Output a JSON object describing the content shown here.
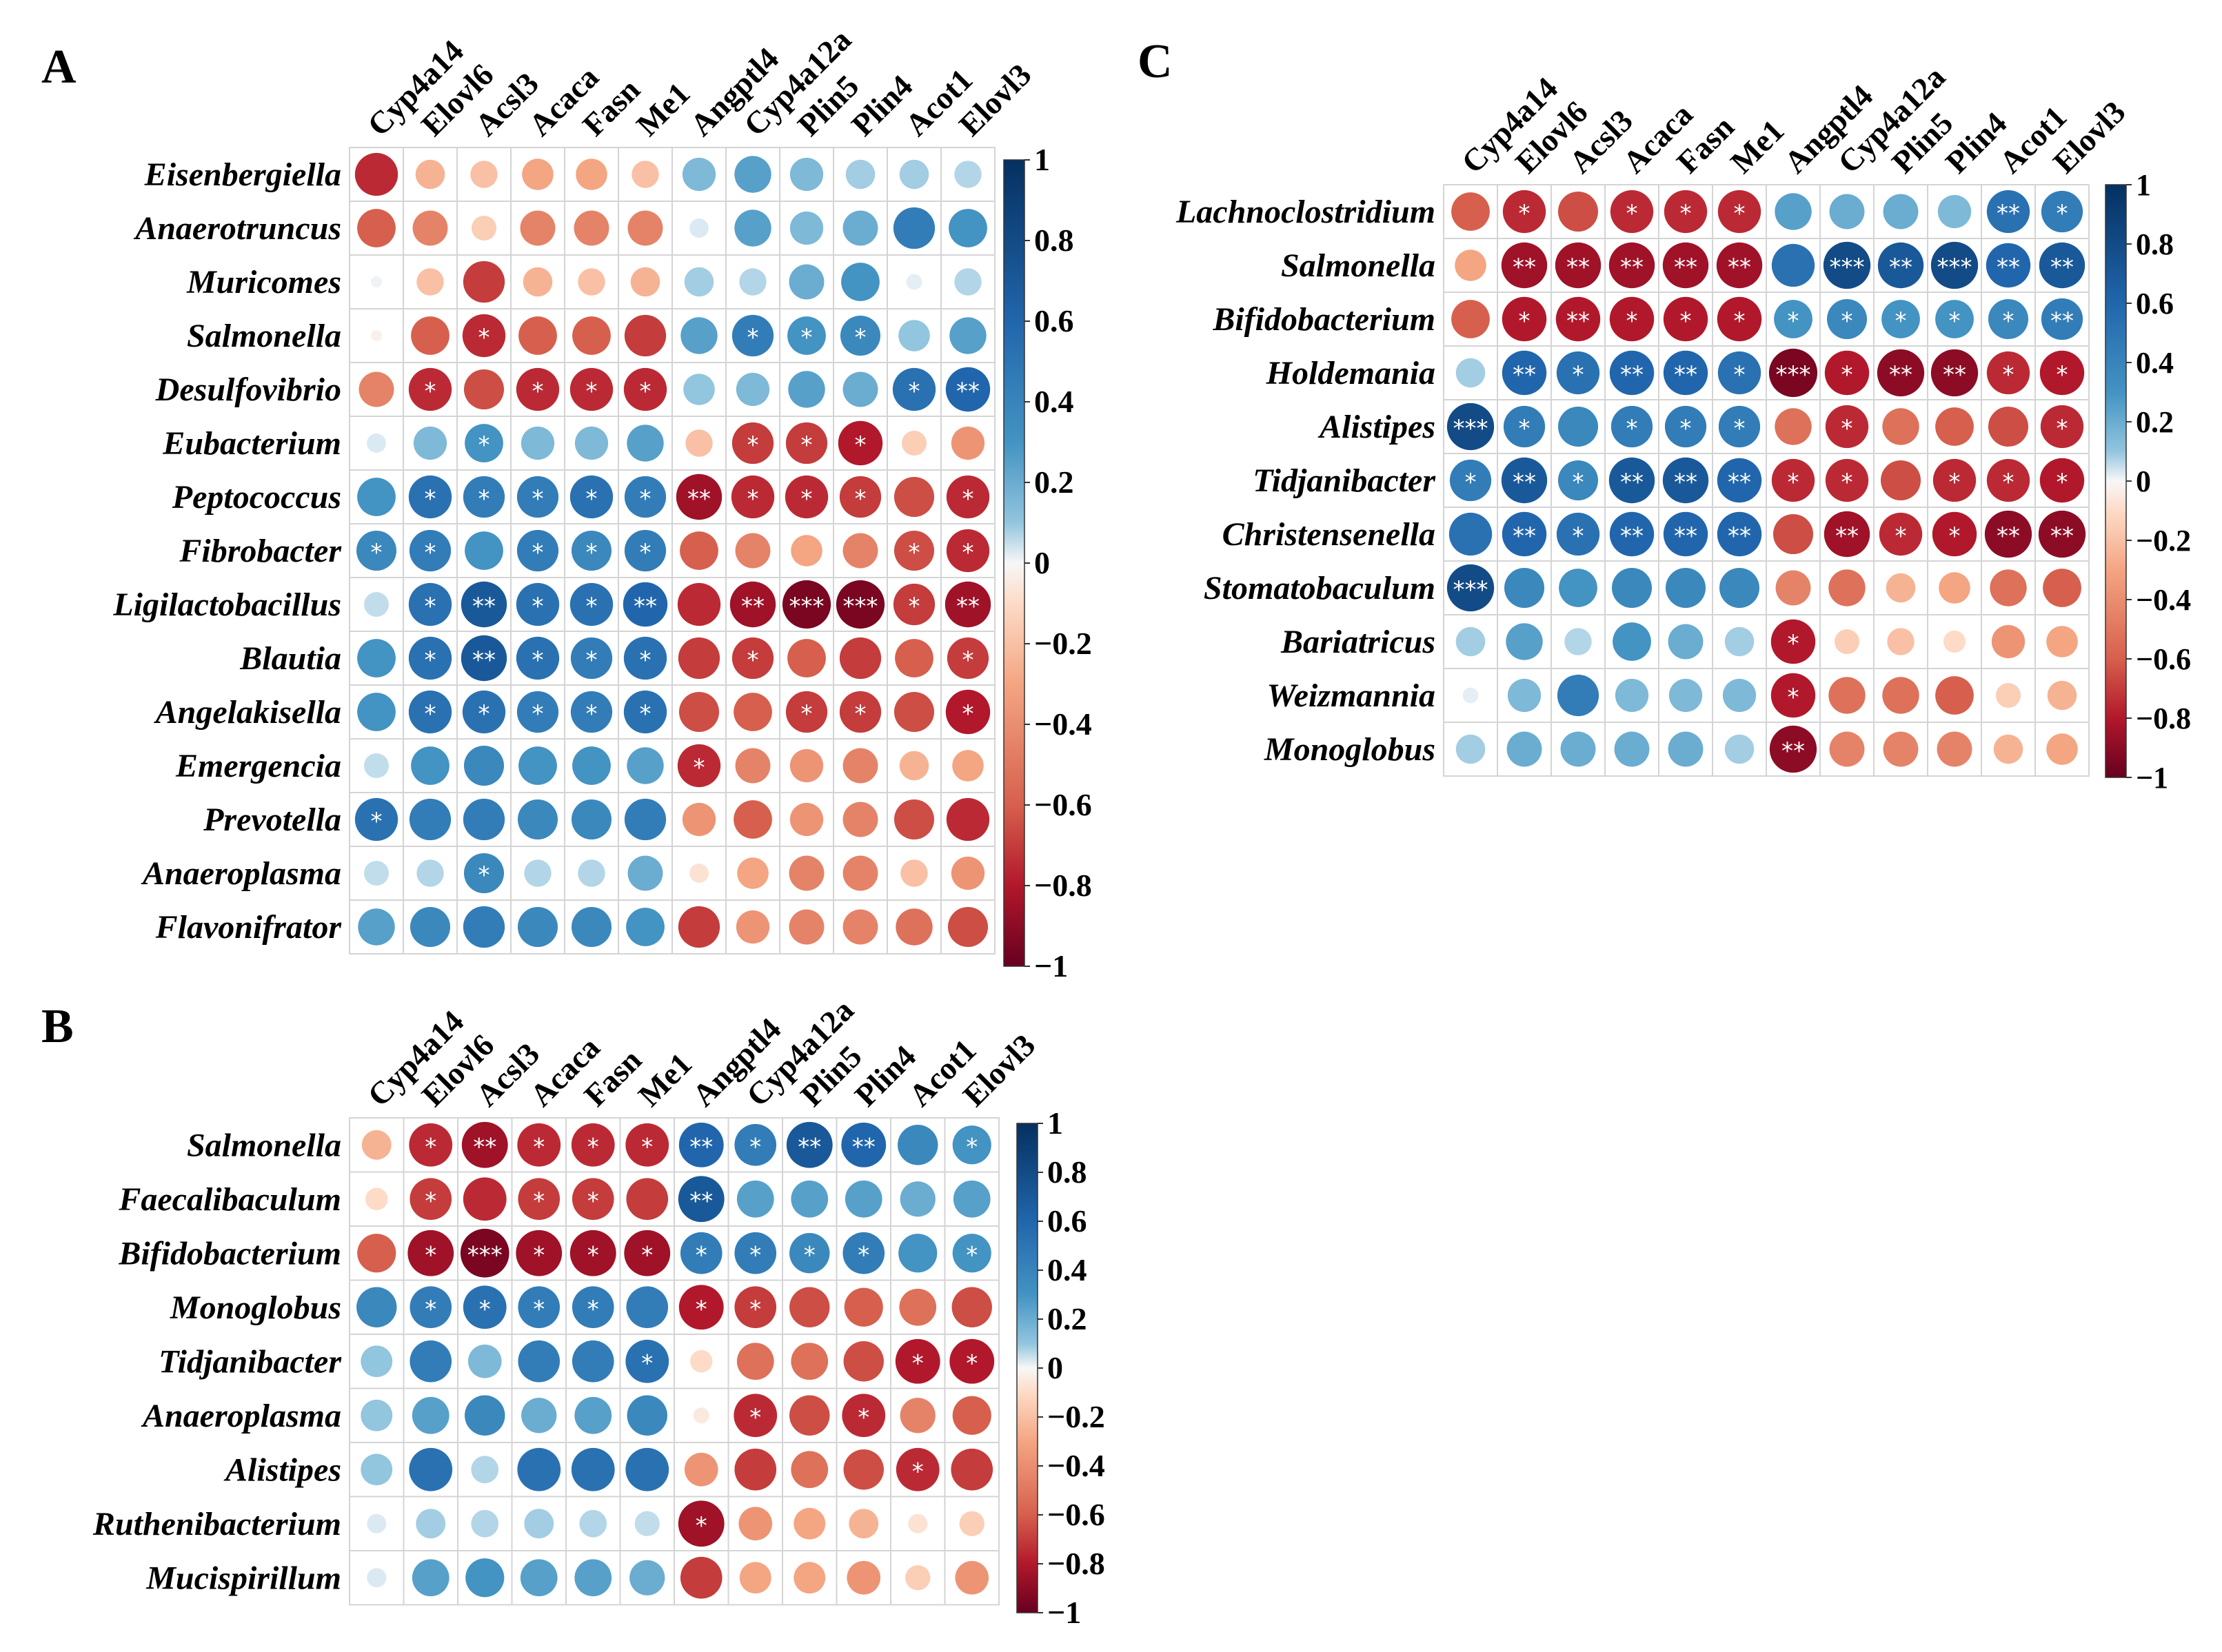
{
  "colors": {
    "neg_max": "#67001f",
    "neg_mid": "#e0413a",
    "neutral": "#f7f7f7",
    "pos_mid": "#3a9fd1",
    "pos_max": "#053061",
    "grid": "#d9d9d9"
  },
  "chart_data": [
    {
      "type": "heatmap",
      "panel": "A",
      "columns": [
        "Cyp4a14",
        "Elovl6",
        "Acsl3",
        "Acaca",
        "Fasn",
        "Me1",
        "Angptl4",
        "Cyp4a12a",
        "Plin5",
        "Plin4",
        "Acot1",
        "Elovl3"
      ],
      "rows": [
        "Eisenbergiella",
        "Anaerotruncus",
        "Muricomes",
        "Salmonella",
        "Desulfovibrio",
        "Eubacterium",
        "Peptococcus",
        "Fibrobacter",
        "Ligilactobacillus",
        "Blautia",
        "Angelakisella",
        "Emergencia",
        "Prevotella",
        "Anaeroplasma",
        "Flavonifrator"
      ],
      "values": [
        [
          -0.75,
          -0.35,
          -0.3,
          -0.4,
          -0.4,
          -0.3,
          0.45,
          0.55,
          0.45,
          0.35,
          0.35,
          0.3
        ],
        [
          -0.6,
          -0.5,
          -0.25,
          -0.5,
          -0.5,
          -0.5,
          0.15,
          0.55,
          0.45,
          0.5,
          0.7,
          0.6
        ],
        [
          0.05,
          -0.3,
          -0.7,
          -0.35,
          -0.3,
          -0.35,
          0.35,
          0.3,
          0.5,
          0.6,
          0.1,
          0.3
        ],
        [
          -0.05,
          -0.6,
          -0.75,
          -0.6,
          -0.6,
          -0.7,
          0.55,
          0.7,
          0.6,
          0.65,
          0.4,
          0.55
        ],
        [
          -0.5,
          -0.75,
          -0.65,
          -0.75,
          -0.75,
          -0.75,
          0.4,
          0.45,
          0.55,
          0.5,
          0.75,
          0.8
        ],
        [
          0.15,
          0.45,
          0.6,
          0.45,
          0.45,
          0.55,
          -0.3,
          -0.7,
          -0.7,
          -0.8,
          -0.25,
          -0.45
        ],
        [
          0.6,
          0.75,
          0.7,
          0.7,
          0.75,
          0.7,
          -0.85,
          -0.75,
          -0.75,
          -0.7,
          -0.65,
          -0.75
        ],
        [
          0.65,
          0.7,
          0.6,
          0.7,
          0.65,
          0.7,
          -0.6,
          -0.5,
          -0.4,
          -0.5,
          -0.65,
          -0.75
        ],
        [
          0.25,
          0.75,
          0.85,
          0.75,
          0.75,
          0.8,
          -0.75,
          -0.85,
          -0.95,
          -0.95,
          -0.7,
          -0.85
        ],
        [
          0.6,
          0.75,
          0.85,
          0.75,
          0.7,
          0.75,
          -0.7,
          -0.7,
          -0.6,
          -0.7,
          -0.6,
          -0.7
        ],
        [
          0.6,
          0.75,
          0.75,
          0.7,
          0.7,
          0.75,
          -0.65,
          -0.6,
          -0.7,
          -0.7,
          -0.65,
          -0.8
        ],
        [
          0.25,
          0.6,
          0.65,
          0.6,
          0.6,
          0.55,
          -0.75,
          -0.5,
          -0.45,
          -0.5,
          -0.35,
          -0.4
        ],
        [
          0.75,
          0.7,
          0.7,
          0.65,
          0.65,
          0.7,
          -0.45,
          -0.6,
          -0.45,
          -0.5,
          -0.65,
          -0.75
        ],
        [
          0.25,
          0.3,
          0.65,
          0.3,
          0.3,
          0.5,
          -0.15,
          -0.4,
          -0.5,
          -0.5,
          -0.3,
          -0.45
        ],
        [
          0.55,
          0.65,
          0.7,
          0.65,
          0.65,
          0.6,
          -0.7,
          -0.45,
          -0.5,
          -0.5,
          -0.55,
          -0.65
        ]
      ],
      "stars": [
        [
          "",
          "",
          "",
          "",
          "",
          "",
          "",
          "",
          "",
          "",
          "",
          ""
        ],
        [
          "",
          "",
          "",
          "",
          "",
          "",
          "",
          "",
          "",
          "",
          "",
          ""
        ],
        [
          "",
          "",
          "",
          "",
          "",
          "",
          "",
          "",
          "",
          "",
          "",
          ""
        ],
        [
          "",
          "",
          "*",
          "",
          "",
          "",
          "",
          "*",
          "*",
          "*",
          "",
          ""
        ],
        [
          "",
          "*",
          "",
          "*",
          "*",
          "*",
          "",
          "",
          "",
          "",
          "*",
          "**"
        ],
        [
          "",
          "",
          "*",
          "",
          "",
          "",
          "",
          "*",
          "*",
          "*",
          "",
          ""
        ],
        [
          "",
          "*",
          "*",
          "*",
          "*",
          "*",
          "**",
          "*",
          "*",
          "*",
          "",
          "*"
        ],
        [
          "*",
          "*",
          "",
          "*",
          "*",
          "*",
          "",
          "",
          "",
          "",
          "*",
          "*"
        ],
        [
          "",
          "*",
          "**",
          "*",
          "*",
          "**",
          "",
          "**",
          "***",
          "***",
          "*",
          "**"
        ],
        [
          "",
          "*",
          "**",
          "*",
          "*",
          "*",
          "",
          "*",
          "",
          "",
          "",
          "*"
        ],
        [
          "",
          "*",
          "*",
          "*",
          "*",
          "*",
          "",
          "",
          "*",
          "*",
          "",
          "*"
        ],
        [
          "",
          "",
          "",
          "",
          "",
          "",
          "*",
          "",
          "",
          "",
          "",
          ""
        ],
        [
          "*",
          "",
          "",
          "",
          "",
          "",
          "",
          "",
          "",
          "",
          "",
          ""
        ],
        [
          "",
          "",
          "*",
          "",
          "",
          "",
          "",
          "",
          "",
          "",
          "",
          ""
        ],
        [
          "",
          "",
          "",
          "",
          "",
          "",
          "",
          "",
          "",
          "",
          "",
          ""
        ]
      ],
      "colorbar_ticks": [
        "1",
        "0.8",
        "0.6",
        "0.4",
        "0.2",
        "0",
        "−0.2",
        "−0.4",
        "−0.6",
        "−0.8",
        "−1"
      ],
      "colorbar_range": [
        -1,
        1
      ]
    },
    {
      "type": "heatmap",
      "panel": "B",
      "columns": [
        "Cyp4a14",
        "Elovl6",
        "Acsl3",
        "Acaca",
        "Fasn",
        "Me1",
        "Angptl4",
        "Cyp4a12a",
        "Plin5",
        "Plin4",
        "Acot1",
        "Elovl3"
      ],
      "rows": [
        "Salmonella",
        "Faecalibaculum",
        "Bifidobacterium",
        "Monoglobus",
        "Tidjanibacter",
        "Anaeroplasma",
        "Alistipes",
        "Ruthenibacterium",
        "Mucispirillum"
      ],
      "values": [
        [
          -0.35,
          -0.75,
          -0.85,
          -0.75,
          -0.75,
          -0.75,
          0.8,
          0.7,
          0.85,
          0.8,
          0.65,
          0.6
        ],
        [
          -0.2,
          -0.7,
          -0.75,
          -0.7,
          -0.7,
          -0.7,
          0.85,
          0.55,
          0.55,
          0.55,
          0.5,
          0.55
        ],
        [
          -0.6,
          -0.85,
          -0.95,
          -0.85,
          -0.85,
          -0.85,
          0.7,
          0.7,
          0.65,
          0.7,
          0.6,
          0.6
        ],
        [
          0.65,
          0.7,
          0.75,
          0.7,
          0.7,
          0.7,
          -0.8,
          -0.7,
          -0.65,
          -0.6,
          -0.55,
          -0.65
        ],
        [
          0.4,
          0.7,
          0.45,
          0.7,
          0.7,
          0.75,
          -0.2,
          -0.55,
          -0.55,
          -0.65,
          -0.8,
          -0.8
        ],
        [
          0.4,
          0.55,
          0.65,
          0.5,
          0.55,
          0.65,
          -0.1,
          -0.75,
          -0.65,
          -0.75,
          -0.5,
          -0.6
        ],
        [
          0.4,
          0.75,
          0.3,
          0.75,
          0.75,
          0.75,
          -0.45,
          -0.7,
          -0.55,
          -0.65,
          -0.75,
          -0.7
        ],
        [
          0.15,
          0.35,
          0.3,
          0.35,
          0.3,
          0.25,
          -0.85,
          -0.45,
          -0.4,
          -0.35,
          -0.15,
          -0.25
        ],
        [
          0.15,
          0.55,
          0.6,
          0.55,
          0.55,
          0.5,
          -0.7,
          -0.4,
          -0.4,
          -0.45,
          -0.25,
          -0.45
        ]
      ],
      "stars": [
        [
          "",
          "*",
          "**",
          "*",
          "*",
          "*",
          "**",
          "*",
          "**",
          "**",
          "",
          "*"
        ],
        [
          "",
          "*",
          "",
          "*",
          "*",
          "",
          "**",
          "",
          "",
          "",
          "",
          ""
        ],
        [
          "",
          "*",
          "***",
          "*",
          "*",
          "*",
          "*",
          "*",
          "*",
          "*",
          "",
          "*"
        ],
        [
          "",
          "*",
          "*",
          "*",
          "*",
          "",
          "*",
          "*",
          "",
          "",
          "",
          ""
        ],
        [
          "",
          "",
          "",
          "",
          "",
          "*",
          "",
          "",
          "",
          "",
          "*",
          "*"
        ],
        [
          "",
          "",
          "",
          "",
          "",
          "",
          "",
          "*",
          "",
          "*",
          "",
          ""
        ],
        [
          "",
          "",
          "",
          "",
          "",
          "",
          "",
          "",
          "",
          "",
          "*",
          ""
        ],
        [
          "",
          "",
          "",
          "",
          "",
          "",
          "*",
          "",
          "",
          "",
          "",
          ""
        ],
        [
          "",
          "",
          "",
          "",
          "",
          "",
          "",
          "",
          "",
          "",
          "",
          ""
        ]
      ],
      "colorbar_ticks": [
        "1",
        "0.8",
        "0.6",
        "0.4",
        "0.2",
        "0",
        "−0.2",
        "−0.4",
        "−0.6",
        "−0.8",
        "−1"
      ],
      "colorbar_range": [
        -1,
        1
      ]
    },
    {
      "type": "heatmap",
      "panel": "C",
      "columns": [
        "Cyp4a14",
        "Elovl6",
        "Acsl3",
        "Acaca",
        "Fasn",
        "Me1",
        "Angptl4",
        "Cyp4a12a",
        "Plin5",
        "Plin4",
        "Acot1",
        "Elovl3"
      ],
      "rows": [
        "Lachnoclostridium",
        "Salmonella",
        "Bifidobacterium",
        "Holdemania",
        "Alistipes",
        "Tidjanibacter",
        "Christensenella",
        "Stomatobaculum",
        "Bariatricus",
        "Weizmannia",
        "Monoglobus"
      ],
      "values": [
        [
          -0.6,
          -0.75,
          -0.65,
          -0.75,
          -0.75,
          -0.75,
          0.55,
          0.5,
          0.5,
          0.45,
          0.75,
          0.7
        ],
        [
          -0.4,
          -0.85,
          -0.85,
          -0.85,
          -0.85,
          -0.85,
          0.75,
          0.9,
          0.85,
          0.9,
          0.8,
          0.85
        ],
        [
          -0.6,
          -0.8,
          -0.8,
          -0.8,
          -0.8,
          -0.8,
          0.6,
          0.65,
          0.6,
          0.6,
          0.65,
          0.7
        ],
        [
          0.35,
          0.8,
          0.75,
          0.8,
          0.8,
          0.75,
          -0.95,
          -0.8,
          -0.9,
          -0.9,
          -0.75,
          -0.8
        ],
        [
          0.9,
          0.7,
          0.65,
          0.7,
          0.7,
          0.7,
          -0.55,
          -0.75,
          -0.55,
          -0.6,
          -0.65,
          -0.75
        ],
        [
          0.7,
          0.85,
          0.65,
          0.85,
          0.85,
          0.8,
          -0.75,
          -0.75,
          -0.65,
          -0.75,
          -0.75,
          -0.8
        ],
        [
          0.75,
          0.8,
          0.75,
          0.8,
          0.8,
          0.8,
          -0.65,
          -0.85,
          -0.75,
          -0.8,
          -0.9,
          -0.9
        ],
        [
          0.9,
          0.65,
          0.6,
          0.65,
          0.65,
          0.65,
          -0.5,
          -0.55,
          -0.35,
          -0.4,
          -0.55,
          -0.6
        ],
        [
          0.35,
          0.55,
          0.3,
          0.6,
          0.5,
          0.35,
          -0.8,
          -0.25,
          -0.3,
          -0.2,
          -0.45,
          -0.4
        ],
        [
          0.1,
          0.45,
          0.7,
          0.45,
          0.45,
          0.45,
          -0.8,
          -0.55,
          -0.55,
          -0.6,
          -0.25,
          -0.35
        ],
        [
          0.35,
          0.5,
          0.5,
          0.5,
          0.5,
          0.35,
          -0.9,
          -0.5,
          -0.5,
          -0.5,
          -0.35,
          -0.4
        ]
      ],
      "stars": [
        [
          "",
          "*",
          "",
          "*",
          "*",
          "*",
          "",
          "",
          "",
          "",
          "**",
          "*"
        ],
        [
          "",
          "**",
          "**",
          "**",
          "**",
          "**",
          "",
          "***",
          "**",
          "***",
          "**",
          "**"
        ],
        [
          "",
          "*",
          "**",
          "*",
          "*",
          "*",
          "*",
          "*",
          "*",
          "*",
          "*",
          "**"
        ],
        [
          "",
          "**",
          "*",
          "**",
          "**",
          "*",
          "***",
          "*",
          "**",
          "**",
          "*",
          "*"
        ],
        [
          "***",
          "*",
          "",
          "*",
          "*",
          "*",
          "",
          "*",
          "",
          "",
          "",
          "*"
        ],
        [
          "*",
          "**",
          "*",
          "**",
          "**",
          "**",
          "*",
          "*",
          "",
          "*",
          "*",
          "*"
        ],
        [
          "",
          "**",
          "*",
          "**",
          "**",
          "**",
          "",
          "**",
          "*",
          "*",
          "**",
          "**"
        ],
        [
          "***",
          "",
          "",
          "",
          "",
          "",
          "",
          "",
          "",
          "",
          "",
          ""
        ],
        [
          "",
          "",
          "",
          "",
          "",
          "",
          "*",
          "",
          "",
          "",
          "",
          ""
        ],
        [
          "",
          "",
          "",
          "",
          "",
          "",
          "*",
          "",
          "",
          "",
          "",
          ""
        ],
        [
          "",
          "",
          "",
          "",
          "",
          "",
          "**",
          "",
          "",
          "",
          "",
          ""
        ]
      ],
      "colorbar_ticks": [
        "1",
        "0.8",
        "0.6",
        "0.4",
        "0.2",
        "0",
        "−0.2",
        "−0.4",
        "−0.6",
        "−0.8",
        "−1"
      ],
      "colorbar_range": [
        -1,
        1
      ]
    }
  ]
}
